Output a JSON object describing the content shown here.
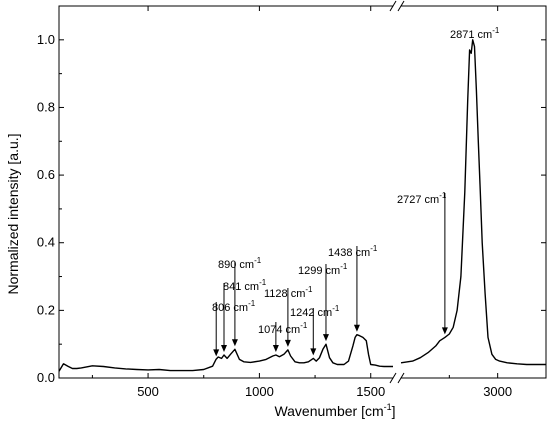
{
  "chart_data": {
    "type": "line",
    "title": "",
    "xlabel": "Wavenumber [cm",
    "xlabel_sup": "-1",
    "xlabel_suffix": "]",
    "ylabel": "Normalized intensity [a.u.]",
    "ylim": [
      0,
      1.1
    ],
    "y_ticks": [
      "0.0",
      "0.2",
      "0.4",
      "0.6",
      "0.8",
      "1.0"
    ],
    "y_tick_values": [
      0,
      0.2,
      0.4,
      0.6,
      0.8,
      1.0
    ],
    "x_axis_break": true,
    "x_segments": [
      {
        "xlim": [
          100,
          1600
        ],
        "ticks": [
          500,
          1000,
          1500
        ],
        "tick_labels": [
          "500",
          "1000",
          "1500"
        ]
      },
      {
        "xlim": [
          2500,
          3250
        ],
        "ticks": [
          3000
        ],
        "tick_labels": [
          "3000"
        ]
      }
    ],
    "grid": false,
    "legend": "none",
    "series": [
      {
        "x": [
          100,
          120,
          140,
          160,
          180,
          200,
          250,
          300,
          350,
          400,
          450,
          500,
          550,
          600,
          650,
          700,
          750,
          790,
          805,
          815,
          830,
          841,
          855,
          870,
          890,
          910,
          930,
          960,
          1000,
          1030,
          1060,
          1074,
          1090,
          1110,
          1128,
          1140,
          1160,
          1180,
          1200,
          1220,
          1242,
          1255,
          1270,
          1285,
          1299,
          1315,
          1330,
          1350,
          1380,
          1400,
          1420,
          1430,
          1438,
          1450,
          1465,
          1480,
          1490,
          1500,
          1520,
          1540,
          1560,
          1580,
          1600
        ],
        "y": [
          0.02,
          0.042,
          0.035,
          0.028,
          0.028,
          0.03,
          0.036,
          0.034,
          0.03,
          0.027,
          0.025,
          0.024,
          0.025,
          0.022,
          0.022,
          0.022,
          0.025,
          0.035,
          0.055,
          0.062,
          0.058,
          0.068,
          0.058,
          0.07,
          0.085,
          0.055,
          0.048,
          0.046,
          0.05,
          0.055,
          0.065,
          0.068,
          0.063,
          0.07,
          0.083,
          0.065,
          0.048,
          0.045,
          0.045,
          0.048,
          0.058,
          0.05,
          0.06,
          0.085,
          0.1,
          0.06,
          0.045,
          0.04,
          0.04,
          0.05,
          0.095,
          0.12,
          0.128,
          0.125,
          0.12,
          0.11,
          0.07,
          0.04,
          0.038,
          0.035,
          0.034,
          0.034,
          0.034
        ]
      },
      {
        "x": [
          2500,
          2560,
          2600,
          2640,
          2680,
          2700,
          2727,
          2750,
          2770,
          2790,
          2810,
          2830,
          2845,
          2855,
          2863,
          2871,
          2880,
          2890,
          2900,
          2910,
          2920,
          2935,
          2950,
          2970,
          2990,
          3010,
          3050,
          3100,
          3150,
          3200,
          3250
        ],
        "y": [
          0.045,
          0.05,
          0.06,
          0.075,
          0.095,
          0.11,
          0.12,
          0.13,
          0.15,
          0.2,
          0.3,
          0.55,
          0.82,
          0.97,
          0.96,
          1.0,
          0.98,
          0.85,
          0.7,
          0.55,
          0.4,
          0.25,
          0.12,
          0.07,
          0.055,
          0.05,
          0.045,
          0.042,
          0.04,
          0.04,
          0.04
        ]
      }
    ],
    "annotations": [
      {
        "value": "806",
        "unit": "cm",
        "sup": "-1",
        "x": 806,
        "y": 0.055
      },
      {
        "value": "841",
        "unit": "cm",
        "sup": "-1",
        "x": 841,
        "y": 0.068
      },
      {
        "value": "890",
        "unit": "cm",
        "sup": "-1",
        "x": 890,
        "y": 0.085
      },
      {
        "value": "1074",
        "unit": "cm",
        "sup": "-1",
        "x": 1074,
        "y": 0.068
      },
      {
        "value": "1128",
        "unit": "cm",
        "sup": "-1",
        "x": 1128,
        "y": 0.083
      },
      {
        "value": "1242",
        "unit": "cm",
        "sup": "-1",
        "x": 1242,
        "y": 0.058
      },
      {
        "value": "1299",
        "unit": "cm",
        "sup": "-1",
        "x": 1299,
        "y": 0.1
      },
      {
        "value": "1438",
        "unit": "cm",
        "sup": "-1",
        "x": 1438,
        "y": 0.128
      },
      {
        "value": "2727",
        "unit": "cm",
        "sup": "-1",
        "x": 2727,
        "y": 0.12
      },
      {
        "value": "2871",
        "unit": "cm",
        "sup": "-1",
        "x": 2871,
        "y": 1.0
      }
    ],
    "colors": {
      "line": "#000000",
      "axis": "#000000",
      "background": "#ffffff"
    }
  }
}
